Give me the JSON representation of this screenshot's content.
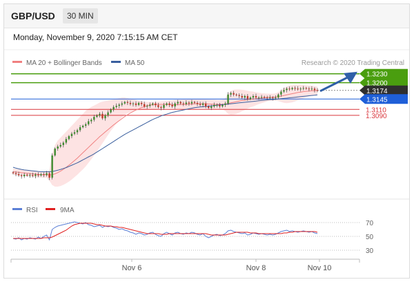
{
  "header": {
    "pair": "GBP/USD",
    "timeframe": "30 MIN"
  },
  "timestamp": "Monday, November 9, 2020 7:15:15 AM CET",
  "legend": {
    "ma20": "MA 20 + Bollinger Bands",
    "ma50": "MA 50",
    "rsi": "RSI",
    "ma9": "9MA"
  },
  "credit": "Research © 2020 Trading Central",
  "colors": {
    "resistance": "#4a9e0f",
    "current": "#2f2f2f",
    "pivot": "#1f5fd8",
    "support": "#d9353b",
    "ma20": "#f08080",
    "ma50": "#3a5f9e",
    "bollinger": "#fde0e0",
    "candle_up": "#3d8a2e",
    "candle_down": "#c0392b",
    "rsi": "#5b7fd6",
    "ma9": "#e02020",
    "arrow": "#2f5fa8"
  },
  "chart_data": {
    "type": "line",
    "price_ylim": [
      1.2815,
      1.3255
    ],
    "x_ticks": [
      "Nov 6",
      "Nov 8",
      "Nov 10"
    ],
    "levels": [
      {
        "label": "1.3230",
        "value": 1.323,
        "kind": "resistance"
      },
      {
        "label": "1.3200",
        "value": 1.32,
        "kind": "resistance"
      },
      {
        "label": "1.3174",
        "value": 1.3174,
        "kind": "current"
      },
      {
        "label": "1.3145",
        "value": 1.3145,
        "kind": "pivot"
      },
      {
        "label": "1.3110",
        "value": 1.311,
        "kind": "support"
      },
      {
        "label": "1.3090",
        "value": 1.309,
        "kind": "support"
      }
    ],
    "close": [
      1.2895,
      1.2892,
      1.2888,
      1.2885,
      1.289,
      1.2887,
      1.2889,
      1.2886,
      1.2891,
      1.2888,
      1.2892,
      1.2889,
      1.2895,
      1.288,
      1.2955,
      1.2978,
      1.2985,
      1.299,
      1.2998,
      1.301,
      1.302,
      1.3028,
      1.3033,
      1.304,
      1.305,
      1.3055,
      1.306,
      1.307,
      1.3075,
      1.3085,
      1.309,
      1.3095,
      1.308,
      1.309,
      1.31,
      1.311,
      1.3118,
      1.3122,
      1.3126,
      1.313,
      1.3135,
      1.3132,
      1.3128,
      1.313,
      1.3125,
      1.3132,
      1.3128,
      1.312,
      1.3122,
      1.3126,
      1.313,
      1.3124,
      1.3118,
      1.3115,
      1.3125,
      1.313,
      1.3125,
      1.312,
      1.313,
      1.3135,
      1.313,
      1.3128,
      1.3133,
      1.313,
      1.3135,
      1.3132,
      1.3128,
      1.3125,
      1.313,
      1.312,
      1.3115,
      1.312,
      1.3125,
      1.3125,
      1.312,
      1.3125,
      1.313,
      1.316,
      1.3165,
      1.316,
      1.3158,
      1.3155,
      1.315,
      1.3155,
      1.3145,
      1.315,
      1.3155,
      1.315,
      1.315,
      1.3152,
      1.315,
      1.3148,
      1.315,
      1.3148,
      1.315,
      1.316,
      1.317,
      1.3175,
      1.318,
      1.3178,
      1.3182,
      1.318,
      1.3178,
      1.318,
      1.3182,
      1.318,
      1.3178,
      1.318,
      1.3175,
      1.3174
    ],
    "ma20": [
      1.29,
      1.2899,
      1.2898,
      1.2897,
      1.2896,
      1.2895,
      1.2894,
      1.2893,
      1.2892,
      1.2891,
      1.289,
      1.289,
      1.289,
      1.2889,
      1.289,
      1.2893,
      1.2897,
      1.2902,
      1.2908,
      1.2915,
      1.2922,
      1.293,
      1.2938,
      1.2946,
      1.2955,
      1.2964,
      1.2973,
      1.2982,
      1.2991,
      1.3,
      1.3009,
      1.3018,
      1.3026,
      1.3034,
      1.3042,
      1.305,
      1.3058,
      1.3065,
      1.3072,
      1.3079,
      1.3086,
      1.3092,
      1.3098,
      1.3103,
      1.3108,
      1.3112,
      1.3116,
      1.3119,
      1.3122,
      1.3124,
      1.3126,
      1.3127,
      1.3127,
      1.3127,
      1.3127,
      1.3127,
      1.3127,
      1.3126,
      1.3126,
      1.3126,
      1.3126,
      1.3127,
      1.3127,
      1.3128,
      1.3128,
      1.3129,
      1.3129,
      1.3129,
      1.3129,
      1.3129,
      1.3128,
      1.3128,
      1.3127,
      1.3127,
      1.3127,
      1.3127,
      1.3128,
      1.313,
      1.3132,
      1.3134,
      1.3136,
      1.3138,
      1.314,
      1.3141,
      1.3143,
      1.3144,
      1.3145,
      1.3146,
      1.3147,
      1.3148,
      1.3149,
      1.315,
      1.3151,
      1.3151,
      1.3152,
      1.3153,
      1.3155,
      1.3157,
      1.3159,
      1.3161,
      1.3163,
      1.3165,
      1.3167,
      1.3168,
      1.317,
      1.3171,
      1.3172,
      1.3173,
      1.3173,
      1.3174
    ],
    "bb_upper": [
      1.291,
      1.2909,
      1.2908,
      1.2907,
      1.2906,
      1.2905,
      1.2904,
      1.2903,
      1.2902,
      1.2901,
      1.29,
      1.29,
      1.29,
      1.2905,
      1.296,
      1.299,
      1.3005,
      1.3015,
      1.3025,
      1.3035,
      1.3045,
      1.3055,
      1.3065,
      1.3075,
      1.3085,
      1.3095,
      1.3105,
      1.3112,
      1.3118,
      1.3123,
      1.3128,
      1.3133,
      1.3136,
      1.3138,
      1.314,
      1.3142,
      1.3144,
      1.3146,
      1.3148,
      1.315,
      1.315,
      1.3148,
      1.3146,
      1.3144,
      1.3142,
      1.314,
      1.3138,
      1.3136,
      1.3135,
      1.3135,
      1.3135,
      1.3135,
      1.3136,
      1.3137,
      1.3138,
      1.3139,
      1.314,
      1.3141,
      1.3142,
      1.3143,
      1.3143,
      1.3144,
      1.3144,
      1.3145,
      1.3145,
      1.3145,
      1.3145,
      1.3145,
      1.3145,
      1.3144,
      1.3144,
      1.3143,
      1.3143,
      1.3142,
      1.3142,
      1.3143,
      1.3148,
      1.3163,
      1.3172,
      1.3176,
      1.3177,
      1.3177,
      1.3176,
      1.3175,
      1.3173,
      1.3171,
      1.317,
      1.3168,
      1.3166,
      1.3165,
      1.3164,
      1.3163,
      1.3163,
      1.3163,
      1.3164,
      1.3168,
      1.3175,
      1.3182,
      1.3187,
      1.319,
      1.3192,
      1.3193,
      1.3193,
      1.3193,
      1.3192,
      1.3191,
      1.319,
      1.3189,
      1.3188,
      1.3187
    ],
    "bb_lower": [
      1.289,
      1.2889,
      1.2888,
      1.2887,
      1.2886,
      1.2885,
      1.2884,
      1.2883,
      1.2882,
      1.2881,
      1.288,
      1.288,
      1.288,
      1.287,
      1.2855,
      1.285,
      1.285,
      1.2852,
      1.2856,
      1.2861,
      1.2867,
      1.2874,
      1.2882,
      1.289,
      1.2899,
      1.2908,
      1.2918,
      1.293,
      1.2942,
      1.2955,
      1.2968,
      1.2982,
      1.2996,
      1.301,
      1.3024,
      1.3038,
      1.305,
      1.3062,
      1.3073,
      1.3083,
      1.3092,
      1.3097,
      1.3101,
      1.3104,
      1.3106,
      1.3107,
      1.3108,
      1.3108,
      1.3108,
      1.3109,
      1.311,
      1.3111,
      1.3112,
      1.3113,
      1.3114,
      1.3114,
      1.3114,
      1.3113,
      1.3112,
      1.3111,
      1.311,
      1.311,
      1.311,
      1.3111,
      1.3111,
      1.3112,
      1.3113,
      1.3113,
      1.3113,
      1.3113,
      1.3112,
      1.3112,
      1.3111,
      1.3111,
      1.3111,
      1.311,
      1.3105,
      1.3095,
      1.3092,
      1.3093,
      1.3095,
      1.3099,
      1.3104,
      1.3108,
      1.3113,
      1.3117,
      1.312,
      1.3124,
      1.3128,
      1.3131,
      1.3134,
      1.3137,
      1.3139,
      1.314,
      1.314,
      1.3138,
      1.3135,
      1.3132,
      1.3131,
      1.3132,
      1.3134,
      1.3137,
      1.3141,
      1.3144,
      1.3148,
      1.3151,
      1.3154,
      1.3157,
      1.3158,
      1.316
    ],
    "ma50": [
      1.2915,
      1.2912,
      1.291,
      1.2908,
      1.2906,
      1.2905,
      1.2904,
      1.2903,
      1.2902,
      1.2901,
      1.29,
      1.29,
      1.29,
      1.29,
      1.2901,
      1.2903,
      1.2905,
      1.2908,
      1.2911,
      1.2914,
      1.2918,
      1.2922,
      1.2926,
      1.293,
      1.2935,
      1.294,
      1.2945,
      1.295,
      1.2955,
      1.296,
      1.2966,
      1.2972,
      1.2978,
      1.2984,
      1.299,
      1.2996,
      1.3002,
      1.3008,
      1.3014,
      1.302,
      1.3026,
      1.3031,
      1.3036,
      1.3041,
      1.3046,
      1.3051,
      1.3056,
      1.3061,
      1.3066,
      1.3071,
      1.3076,
      1.308,
      1.3084,
      1.3088,
      1.3091,
      1.3094,
      1.3097,
      1.31,
      1.3102,
      1.3104,
      1.3106,
      1.3108,
      1.311,
      1.3112,
      1.3114,
      1.3116,
      1.3117,
      1.3118,
      1.3119,
      1.312,
      1.3121,
      1.3122,
      1.3123,
      1.3124,
      1.3125,
      1.3126,
      1.3127,
      1.3128,
      1.3129,
      1.313,
      1.3131,
      1.3132,
      1.3133,
      1.3134,
      1.3135,
      1.3136,
      1.3137,
      1.3138,
      1.3139,
      1.314,
      1.3141,
      1.3142,
      1.3143,
      1.3143,
      1.3144,
      1.3145,
      1.3146,
      1.3147,
      1.3148,
      1.3149,
      1.315,
      1.3151,
      1.3152,
      1.3153,
      1.3154,
      1.3155,
      1.3156,
      1.3157,
      1.3158,
      1.3159
    ],
    "rsi_ylim": [
      22,
      76
    ],
    "rsi_levels": [
      70,
      50,
      30
    ],
    "rsi": [
      47,
      46,
      48,
      45,
      47,
      46,
      48,
      47,
      46,
      49,
      47,
      50,
      52,
      45,
      60,
      63,
      65,
      66,
      67,
      68,
      69,
      70,
      71,
      70,
      69,
      68,
      70,
      67,
      66,
      64,
      65,
      66,
      63,
      65,
      64,
      65,
      63,
      62,
      60,
      61,
      59,
      58,
      56,
      55,
      53,
      55,
      54,
      52,
      53,
      55,
      56,
      53,
      51,
      50,
      54,
      56,
      54,
      52,
      55,
      56,
      54,
      53,
      55,
      54,
      56,
      55,
      53,
      52,
      54,
      50,
      48,
      50,
      52,
      53,
      51,
      52,
      54,
      58,
      59,
      57,
      56,
      55,
      54,
      55,
      52,
      53,
      55,
      54,
      53,
      54,
      53,
      52,
      53,
      52,
      53,
      55,
      57,
      58,
      59,
      57,
      58,
      57,
      56,
      57,
      58,
      57,
      56,
      57,
      55,
      54
    ],
    "ma9": [
      47,
      47,
      47,
      47,
      47,
      47,
      47,
      47,
      47,
      47,
      47,
      48,
      48,
      48,
      49,
      51,
      53,
      55,
      57,
      59,
      62,
      65,
      67,
      68,
      69,
      69,
      69,
      69,
      69,
      68,
      67,
      67,
      66,
      65,
      65,
      65,
      64,
      64,
      63,
      63,
      62,
      61,
      60,
      59,
      58,
      57,
      56,
      55,
      54,
      54,
      54,
      54,
      54,
      53,
      53,
      53,
      54,
      54,
      54,
      54,
      54,
      54,
      54,
      54,
      54,
      54,
      54,
      54,
      54,
      54,
      53,
      52,
      52,
      52,
      52,
      52,
      52,
      53,
      54,
      55,
      56,
      56,
      56,
      56,
      56,
      55,
      55,
      55,
      54,
      54,
      54,
      54,
      54,
      54,
      54,
      54,
      54,
      55,
      55,
      56,
      56,
      57,
      57,
      57,
      57,
      57,
      57,
      57,
      57,
      56
    ]
  }
}
